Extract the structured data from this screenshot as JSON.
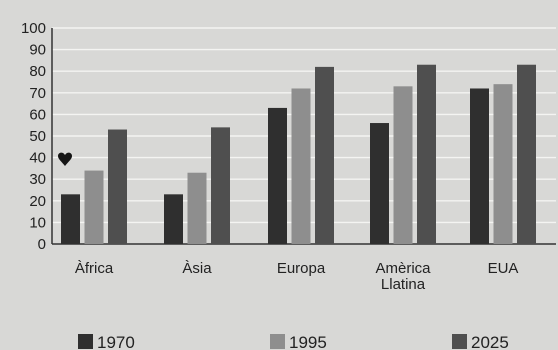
{
  "chart_data": {
    "type": "bar",
    "title": "",
    "xlabel": "",
    "ylabel": "",
    "ylim": [
      0,
      100
    ],
    "yticks": [
      0,
      10,
      20,
      30,
      40,
      50,
      60,
      70,
      80,
      90,
      100
    ],
    "grid": true,
    "categories": [
      {
        "lines": [
          "Àfrica"
        ]
      },
      {
        "lines": [
          "Àsia"
        ]
      },
      {
        "lines": [
          "Europa"
        ]
      },
      {
        "lines": [
          "Amèrica",
          "Llatina"
        ]
      },
      {
        "lines": [
          "EUA"
        ]
      }
    ],
    "series": [
      {
        "name": "1970",
        "color": "#2f2f2f",
        "values": [
          23,
          23,
          63,
          56,
          72
        ]
      },
      {
        "name": "1995",
        "color": "#8e8e8e",
        "values": [
          34,
          33,
          72,
          73,
          74
        ]
      },
      {
        "name": "2025",
        "color": "#4f4f4f",
        "values": [
          53,
          54,
          82,
          83,
          83
        ]
      }
    ],
    "legend_position": "bottom",
    "marker_icon": "heart-icon"
  }
}
